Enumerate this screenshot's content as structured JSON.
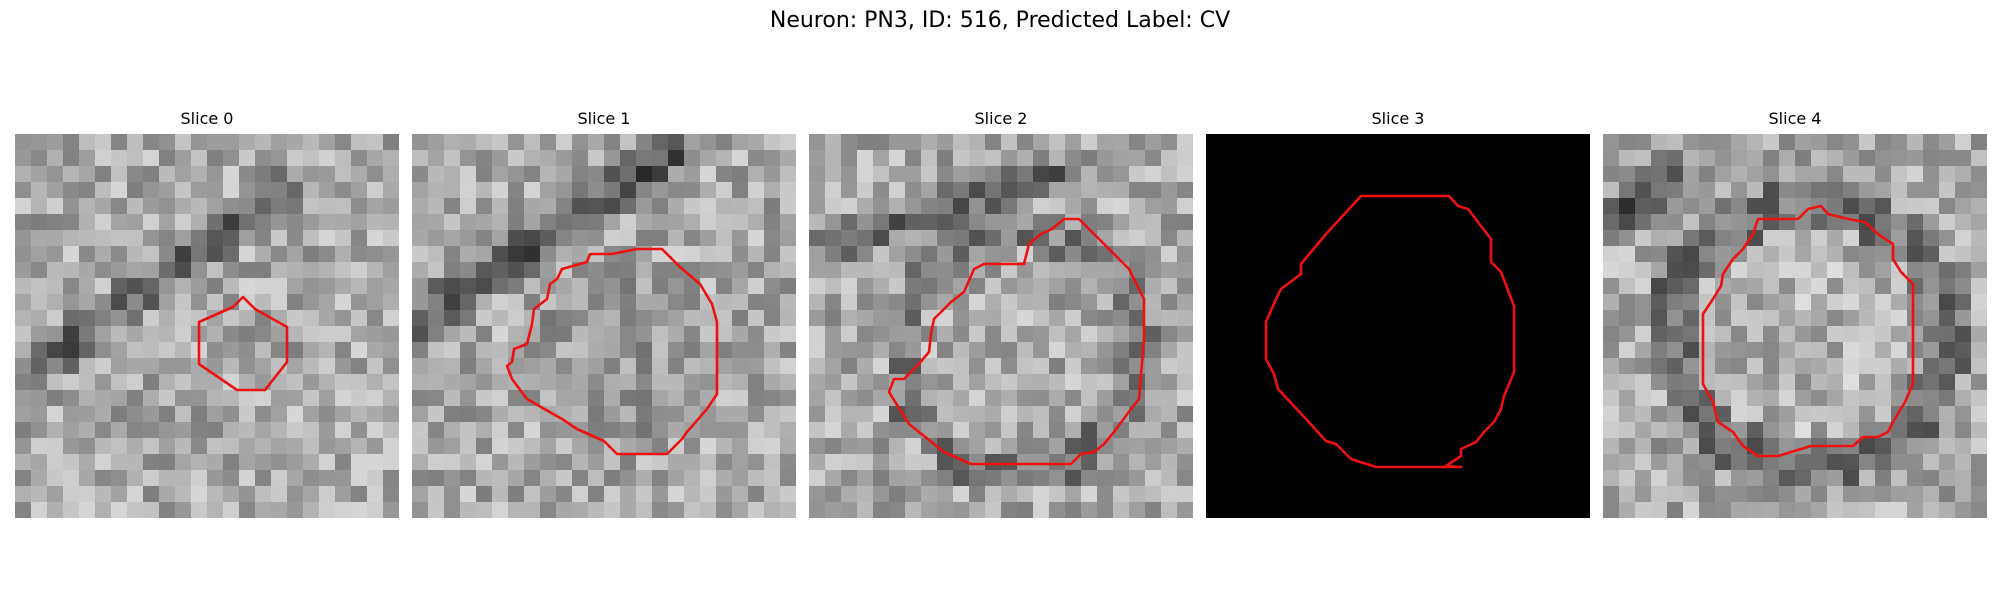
{
  "figure": {
    "title": "Neuron: PN3, ID: 516, Predicted Label: CV"
  },
  "panels": [
    {
      "title": "Slice 0"
    },
    {
      "title": "Slice 1"
    },
    {
      "title": "Slice 2"
    },
    {
      "title": "Slice 3"
    },
    {
      "title": "Slice 4"
    }
  ],
  "colors": {
    "contour": "#ee1111",
    "background": "#ffffff",
    "empty_slice": "#000000"
  }
}
